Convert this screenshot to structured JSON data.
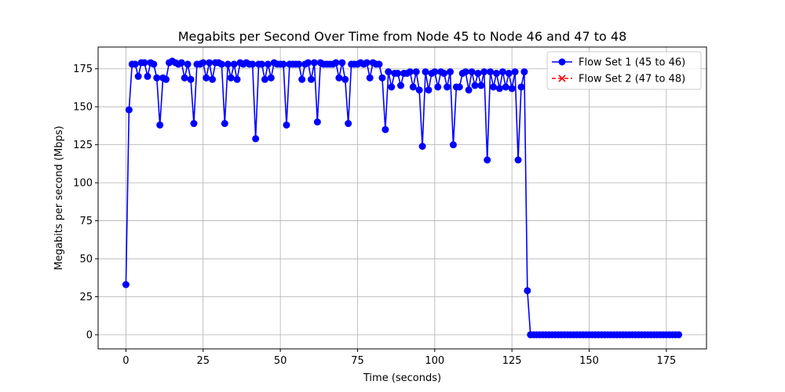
{
  "chart_data": {
    "type": "line",
    "title": "Megabits per Second Over Time from Node 45 to Node 46 and 47 to 48",
    "xlabel": "Time (seconds)",
    "ylabel": "Megabits per second (Mbps)",
    "xlim": [
      -9,
      188
    ],
    "ylim": [
      -9.3,
      189.3
    ],
    "xticks": [
      0,
      25,
      50,
      75,
      100,
      125,
      150,
      175
    ],
    "yticks": [
      0,
      25,
      50,
      75,
      100,
      125,
      150,
      175
    ],
    "grid": true,
    "legend_position": "top-right",
    "series": [
      {
        "name": "Flow Set 1 (45 to 46)",
        "color": "#0000ff",
        "marker": "circle",
        "linestyle": "solid",
        "x": [
          0,
          1,
          2,
          3,
          4,
          5,
          6,
          7,
          8,
          9,
          10,
          11,
          12,
          13,
          14,
          15,
          16,
          17,
          18,
          19,
          20,
          21,
          22,
          23,
          24,
          25,
          26,
          27,
          28,
          29,
          30,
          31,
          32,
          33,
          34,
          35,
          36,
          37,
          38,
          39,
          40,
          41,
          42,
          43,
          44,
          45,
          46,
          47,
          48,
          49,
          50,
          51,
          52,
          53,
          54,
          55,
          56,
          57,
          58,
          59,
          60,
          61,
          62,
          63,
          64,
          65,
          66,
          67,
          68,
          69,
          70,
          71,
          72,
          73,
          74,
          75,
          76,
          77,
          78,
          79,
          80,
          81,
          82,
          83,
          84,
          85,
          86,
          87,
          88,
          89,
          90,
          91,
          92,
          93,
          94,
          95,
          96,
          97,
          98,
          99,
          100,
          101,
          102,
          103,
          104,
          105,
          106,
          107,
          108,
          109,
          110,
          111,
          112,
          113,
          114,
          115,
          116,
          117,
          118,
          119,
          120,
          121,
          122,
          123,
          124,
          125,
          126,
          127,
          128,
          129,
          130,
          131,
          132,
          133,
          134,
          135,
          136,
          137,
          138,
          139,
          140,
          141,
          142,
          143,
          144,
          145,
          146,
          147,
          148,
          149,
          150,
          151,
          152,
          153,
          154,
          155,
          156,
          157,
          158,
          159,
          160,
          161,
          162,
          163,
          164,
          165,
          166,
          167,
          168,
          169,
          170,
          171,
          172,
          173,
          174,
          175,
          176,
          177,
          178,
          179
        ],
        "y": [
          33,
          148,
          178,
          178,
          170,
          179,
          179,
          170,
          179,
          178,
          169,
          138,
          169,
          168,
          179,
          180,
          179,
          178,
          179,
          169,
          178,
          168,
          139,
          178,
          178,
          179,
          169,
          179,
          168,
          179,
          179,
          178,
          139,
          178,
          169,
          178,
          168,
          179,
          178,
          179,
          178,
          178,
          129,
          178,
          178,
          168,
          178,
          169,
          179,
          178,
          178,
          178,
          138,
          178,
          178,
          178,
          178,
          168,
          178,
          179,
          168,
          179,
          140,
          179,
          178,
          178,
          178,
          178,
          179,
          169,
          179,
          168,
          139,
          178,
          178,
          178,
          179,
          178,
          179,
          169,
          179,
          178,
          178,
          169,
          135,
          173,
          163,
          172,
          172,
          164,
          172,
          172,
          173,
          163,
          173,
          161,
          124,
          173,
          161,
          172,
          173,
          163,
          173,
          172,
          163,
          173,
          125,
          163,
          163,
          172,
          173,
          161,
          173,
          164,
          172,
          164,
          173,
          115,
          173,
          163,
          172,
          162,
          173,
          163,
          172,
          162,
          173,
          115,
          163,
          173,
          29,
          0,
          0,
          0,
          0,
          0,
          0,
          0,
          0,
          0,
          0,
          0,
          0,
          0,
          0,
          0,
          0,
          0,
          0,
          0,
          0,
          0,
          0,
          0,
          0,
          0,
          0,
          0,
          0,
          0,
          0,
          0,
          0,
          0,
          0,
          0,
          0,
          0,
          0,
          0,
          0,
          0,
          0,
          0,
          0,
          0,
          0,
          0,
          0,
          0
        ]
      },
      {
        "name": "Flow Set 2 (47 to 48)",
        "color": "#ff0000",
        "marker": "x",
        "linestyle": "dashed",
        "x": [],
        "y": []
      }
    ]
  }
}
